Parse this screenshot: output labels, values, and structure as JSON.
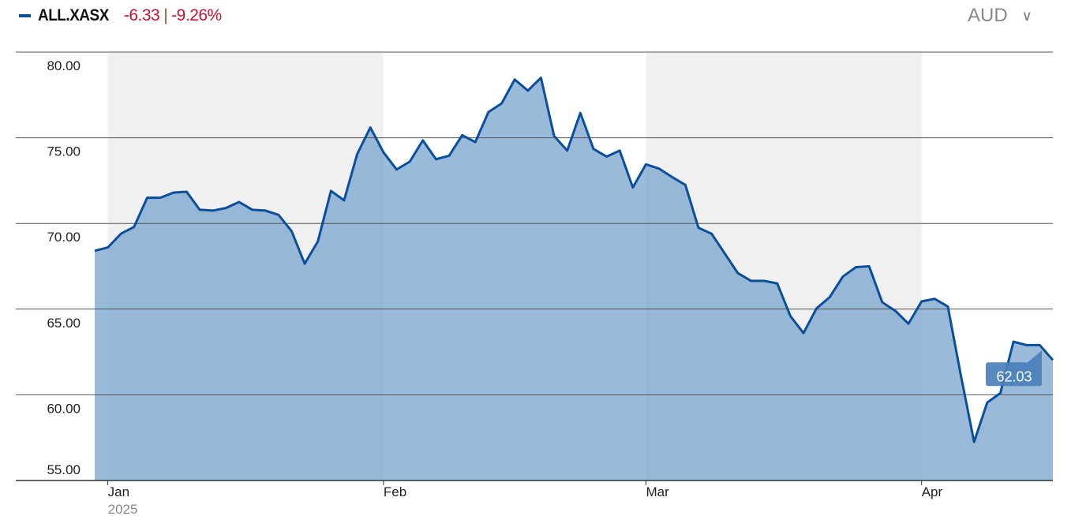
{
  "legend": {
    "ticker": "ALL.XASX",
    "change": "-6.33",
    "separator": "|",
    "change_pct": "-9.26%",
    "series_color": "#0a4f9c",
    "change_color": "#c8102e"
  },
  "currency": {
    "selected": "AUD",
    "icon": "chevron-down-icon"
  },
  "chart_data": {
    "type": "area",
    "title": "",
    "xlabel": "",
    "ylabel": "",
    "ylim": [
      55,
      80
    ],
    "yticks": [
      "55.00",
      "60.00",
      "65.00",
      "70.00",
      "75.00",
      "80.00"
    ],
    "grid": true,
    "x_ticks": [
      {
        "label": "Jan",
        "sub": "2025",
        "start_index": 1
      },
      {
        "label": "Feb",
        "sub": "",
        "start_index": 22
      },
      {
        "label": "Mar",
        "sub": "",
        "start_index": 42
      },
      {
        "label": "Apr",
        "sub": "",
        "start_index": 63
      }
    ],
    "series": [
      {
        "values": [
          68.4,
          68.6,
          69.4,
          69.8,
          71.5,
          71.5,
          71.8,
          71.85,
          70.8,
          70.75,
          70.9,
          71.25,
          70.8,
          70.75,
          70.5,
          69.55,
          67.65,
          68.95,
          71.9,
          71.35,
          74.05,
          75.6,
          74.15,
          73.15,
          73.6,
          74.85,
          73.75,
          73.95,
          75.15,
          74.75,
          76.5,
          77.0,
          78.4,
          77.75,
          78.5,
          75.1,
          74.25,
          76.45,
          74.35,
          73.9,
          74.25,
          72.1,
          73.45,
          73.2,
          72.7,
          72.25,
          69.75,
          69.4,
          68.25,
          67.1,
          66.65,
          66.65,
          66.5,
          64.6,
          63.6,
          65.05,
          65.7,
          66.9,
          67.45,
          67.5,
          65.4,
          64.9,
          64.15,
          65.45,
          65.6,
          65.15,
          61.1,
          57.25,
          59.55,
          60.1,
          63.1,
          62.9,
          62.9,
          62.03
        ]
      }
    ],
    "last_value_label": "62.03",
    "line_color": "#0a4f9c",
    "fill_color": "#7ea6d0",
    "band_color": "#f0f0f0",
    "label_bg": "#4a7fba"
  }
}
